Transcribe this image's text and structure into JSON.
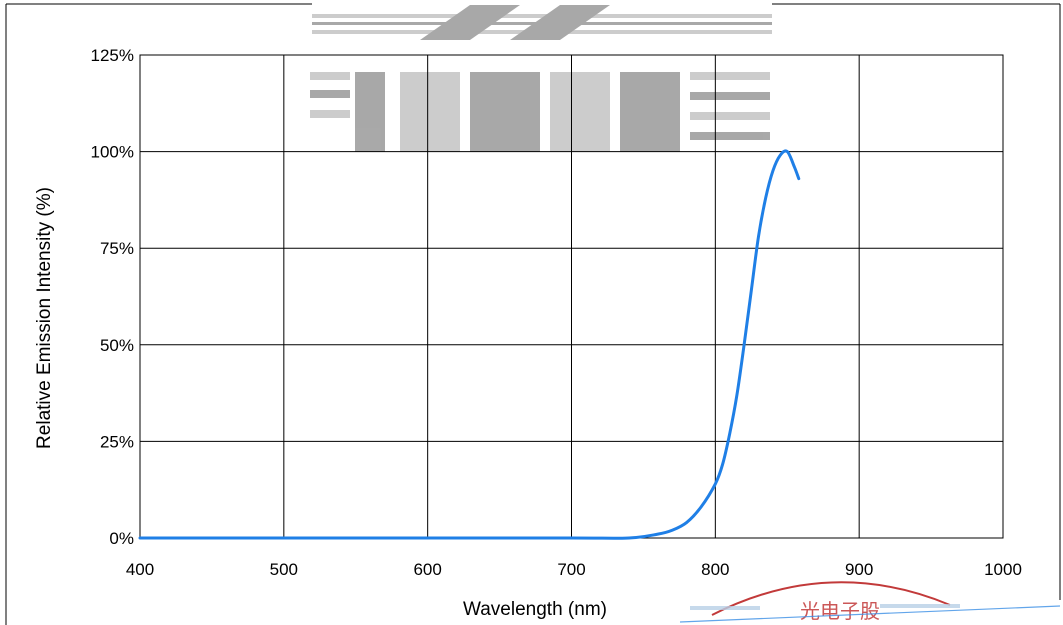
{
  "chart_data": {
    "type": "line",
    "title": "",
    "xlabel": "Wavelength  (nm)",
    "ylabel": "Relative Emission Intensity (%)",
    "xlim": [
      400,
      1000
    ],
    "ylim": [
      0,
      125
    ],
    "x_ticks": [
      400,
      500,
      600,
      700,
      800,
      900,
      1000
    ],
    "y_ticks": [
      0,
      25,
      50,
      75,
      100,
      125
    ],
    "x_tick_labels": [
      "400",
      "500",
      "600",
      "700",
      "800",
      "900",
      "1000"
    ],
    "y_tick_labels": [
      "0%",
      "25%",
      "50%",
      "75%",
      "100%",
      "125%"
    ],
    "grid": true,
    "legend": "none",
    "line_color": "#1f7fe6",
    "series": [
      {
        "x": [
          400,
          500,
          600,
          700,
          740,
          760,
          770,
          780,
          790,
          800,
          805,
          810,
          815,
          820,
          825,
          830,
          835,
          840,
          845,
          850,
          855,
          858
        ],
        "y": [
          0,
          0,
          0,
          0,
          0,
          1,
          2,
          4,
          8,
          14,
          19,
          27,
          37,
          50,
          64,
          78,
          88,
          95,
          99,
          100,
          96,
          93
        ]
      }
    ]
  },
  "watermark": {
    "logo_text": "",
    "stamp_text": "光电子股"
  }
}
